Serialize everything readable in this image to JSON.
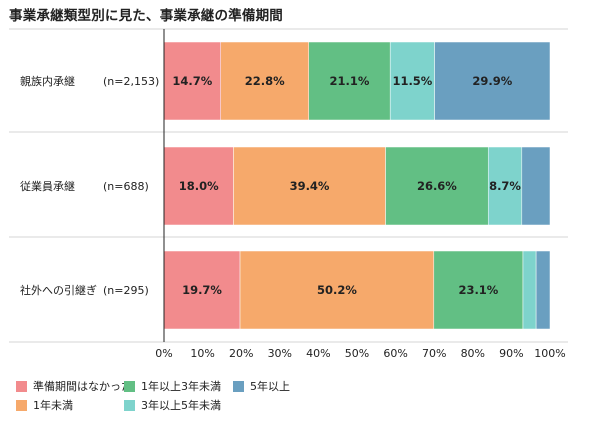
{
  "title": "事業承継類型別に見た、事業承継の準備期間",
  "chart_data": {
    "type": "bar",
    "orientation": "horizontal",
    "stacked": true,
    "percent": true,
    "categories": [
      "親族内承継",
      "従業員承継",
      "社外への引継ぎ"
    ],
    "category_counts": [
      "(n=2,153)",
      "(n=688)",
      "(n=295)"
    ],
    "series": [
      {
        "name": "準備期間はなかった",
        "color": "#F28B8D",
        "values": [
          14.7,
          18.0,
          19.7
        ]
      },
      {
        "name": "1年未満",
        "color": "#F6A96B",
        "values": [
          22.8,
          39.4,
          50.2
        ]
      },
      {
        "name": "1年以上3年未満",
        "color": "#62BF84",
        "values": [
          21.1,
          26.6,
          23.1
        ]
      },
      {
        "name": "3年以上5年未満",
        "color": "#7ED3CC",
        "values": [
          11.5,
          8.7,
          3.4
        ]
      },
      {
        "name": "5年以上",
        "color": "#6A9FC0",
        "values": [
          29.9,
          7.3,
          3.6
        ]
      }
    ],
    "data_labels": [
      [
        "14.7%",
        "22.8%",
        "21.1%",
        "11.5%",
        "29.9%"
      ],
      [
        "18.0%",
        "39.4%",
        "26.6%",
        "8.7%",
        ""
      ],
      [
        "19.7%",
        "50.2%",
        "23.1%",
        "",
        ""
      ]
    ],
    "xlim": [
      0,
      100
    ],
    "xticks": [
      "0%",
      "10%",
      "20%",
      "30%",
      "40%",
      "50%",
      "60%",
      "70%",
      "80%",
      "90%",
      "100%"
    ],
    "legend_position": "bottom-left",
    "grid": false
  }
}
